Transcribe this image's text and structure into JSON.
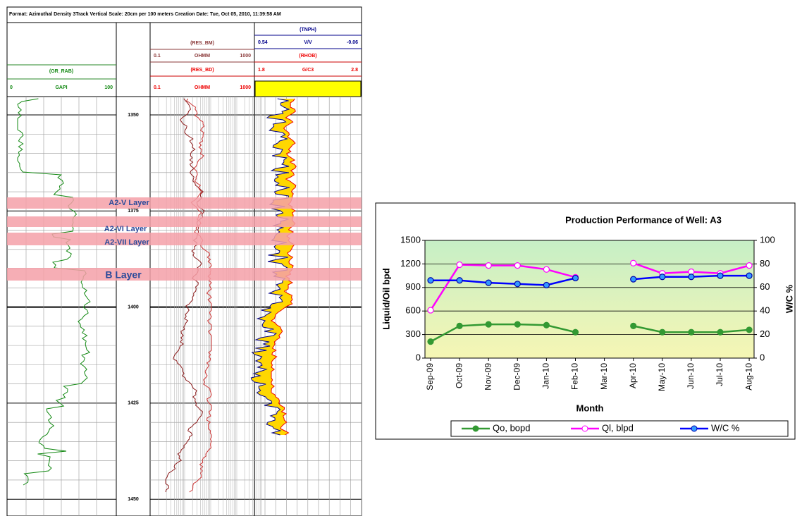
{
  "log": {
    "header": "Format: Azimuthal Density 3Track   Vertical Scale: 20cm per 100 meters   Creation Date: Tue, Oct 05, 2010, 11:39:58 AM",
    "tracks": [
      {
        "name": "(TNPH)",
        "left": 0.54,
        "unit": "V/V",
        "right": -0.06
      },
      {
        "name": "(RES_BM)",
        "left": 0.1,
        "unit": "OHMM",
        "right": 1000
      },
      {
        "name": "(RHOB)",
        "left": 1.8,
        "unit": "G/C3",
        "right": 2.8
      },
      {
        "name": "(GR_RAB)",
        "left": 0,
        "unit": "GAPI",
        "right": 100
      },
      {
        "name": "(RES_BD)",
        "left": 0.1,
        "unit": "OHMM",
        "right": 1000
      }
    ],
    "depths": [
      1350,
      1375,
      1400,
      1425,
      1450
    ],
    "layers": [
      "A2-V  Layer",
      "A2-VI  Layer",
      "A2-VII  Layer",
      "B  Layer"
    ]
  },
  "chart_data": {
    "type": "line",
    "title": "Production Performance of Well: A3",
    "xlabel": "Month",
    "ylabel": "Liquid/Oil bpd",
    "y2label": "W/C %",
    "categories": [
      "Sep-09",
      "Oct-09",
      "Nov-09",
      "Dec-09",
      "Jan-10",
      "Feb-10",
      "Mar-10",
      "Apr-10",
      "May-10",
      "Jun-10",
      "Jul-10",
      "Aug-10"
    ],
    "series": [
      {
        "name": "Qo, bopd",
        "color": "#339933",
        "values": [
          210,
          410,
          430,
          430,
          420,
          330,
          null,
          410,
          330,
          330,
          330,
          360
        ]
      },
      {
        "name": "Ql, blpd",
        "color": "#ff00ff",
        "values": [
          610,
          1190,
          1180,
          1180,
          1130,
          1030,
          null,
          1210,
          1080,
          1100,
          1080,
          1180
        ]
      },
      {
        "name": "W/C %",
        "color": "#0000ff",
        "axis": "y2",
        "values": [
          66,
          66,
          64,
          63,
          62,
          68,
          null,
          67,
          69,
          69,
          70,
          70
        ]
      }
    ],
    "ylim": [
      0,
      1500
    ],
    "yticks": [
      0,
      300,
      600,
      900,
      1200,
      1500
    ],
    "y2lim": [
      0,
      100
    ],
    "y2ticks": [
      0,
      20,
      40,
      60,
      80,
      100
    ],
    "grid": true,
    "legend": "bottom"
  }
}
